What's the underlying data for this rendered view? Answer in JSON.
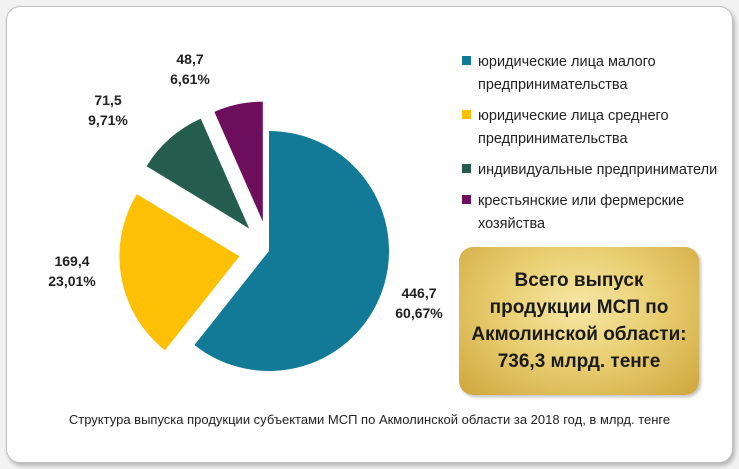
{
  "chart_data": {
    "type": "pie",
    "start_angle_deg": 0,
    "direction": "clockwise",
    "exploded": true,
    "slices": [
      {
        "name": "юридические лица малого предпринимательства",
        "value": 446.7,
        "value_label": "446,7",
        "percent_label": "60,67%",
        "color": "#127a96"
      },
      {
        "name": "юридические лица среднего предпринимательства",
        "value": 169.4,
        "value_label": "169,4",
        "percent_label": "23,01%",
        "color": "#fdc005"
      },
      {
        "name": "индивидуальные предприниматели",
        "value": 71.5,
        "value_label": "71,5",
        "percent_label": "9,71%",
        "color": "#245d4d"
      },
      {
        "name": "крестьянские или фермерские хозяйства",
        "value": 48.7,
        "value_label": "48,7",
        "percent_label": "6,61%",
        "color": "#6d0f5d"
      }
    ],
    "legend": {
      "placement": "right",
      "items": [
        {
          "text": "юридические лица малого предпринимательства",
          "color": "#127a96"
        },
        {
          "text": "юридические лица среднего предпринимательства",
          "color": "#fdc005"
        },
        {
          "text": "индивидуальные предприниматели",
          "color": "#245d4d"
        },
        {
          "text": "крестьянские или фермерские хозяйства",
          "color": "#6d0f5d"
        }
      ]
    },
    "annotation": "Всего выпуск продукции МСП по Акмолинской области: 736,3 млрд. тенге",
    "caption": "Структура  выпуска продукции субъектами МСП по Акмолинской области за 2018 год, в млрд. тенге"
  }
}
